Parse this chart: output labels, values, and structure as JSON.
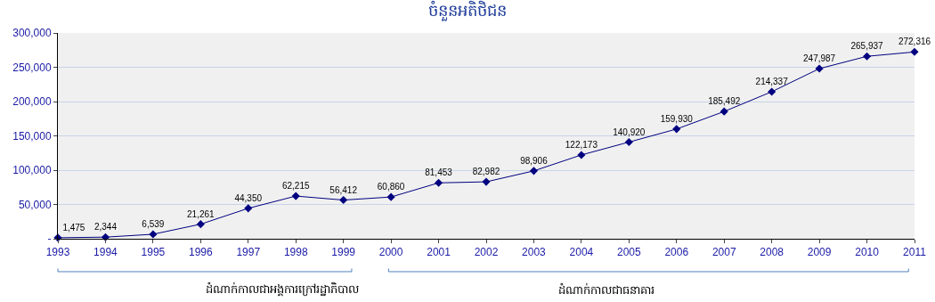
{
  "chart_data": {
    "type": "line",
    "title": "ចំនួនអតិថិជន",
    "x": [
      1993,
      1994,
      1995,
      1996,
      1997,
      1998,
      1999,
      2000,
      2001,
      2002,
      2003,
      2004,
      2005,
      2006,
      2007,
      2008,
      2009,
      2010,
      2011
    ],
    "values": [
      1475,
      2344,
      6539,
      21261,
      44350,
      62215,
      56412,
      60860,
      81453,
      82982,
      98906,
      122173,
      140920,
      159930,
      185492,
      214337,
      247987,
      265937,
      272316
    ],
    "value_labels": [
      "1,475",
      "2,344",
      "6,539",
      "21,261",
      "44,350",
      "62,215",
      "56,412",
      "60,860",
      "81,453",
      "82,982",
      "98,906",
      "122,173",
      "140,920",
      "159,930",
      "185,492",
      "214,337",
      "247,987",
      "265,937",
      "272,316"
    ],
    "color": "#000080",
    "marker": "diamond",
    "grid": "y",
    "xlim": [
      1993,
      2011
    ],
    "xticks": [
      1993,
      1994,
      1995,
      1996,
      1997,
      1998,
      1999,
      2000,
      2001,
      2002,
      2003,
      2004,
      2005,
      2006,
      2007,
      2008,
      2009,
      2010,
      2011
    ],
    "ylim": [
      0,
      300000
    ],
    "yticks": [
      {
        "value": 0,
        "label": "-"
      },
      {
        "value": 50000,
        "label": "50,000"
      },
      {
        "value": 100000,
        "label": "100,000"
      },
      {
        "value": 150000,
        "label": "150,000"
      },
      {
        "value": 200000,
        "label": "200,000"
      },
      {
        "value": 250000,
        "label": "250,000"
      },
      {
        "value": 300000,
        "label": "300,000"
      }
    ],
    "annotations": [
      "ដំណាក់កាលជាអង្គការក្រៅរដ្ឋាភិបាល",
      "ដំណាក់កាលជាធនាគារ"
    ]
  }
}
